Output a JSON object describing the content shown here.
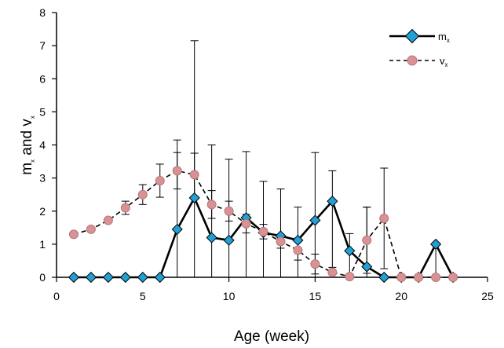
{
  "chart_data": {
    "type": "line",
    "xlabel": "Age (week)",
    "ylabel": {
      "m": "m",
      "sub1": "x",
      "and": " and v",
      "sub2": "x"
    },
    "xlim": [
      0,
      25
    ],
    "ylim": [
      0,
      8
    ],
    "xticks": [
      0,
      5,
      10,
      15,
      20,
      25
    ],
    "yticks": [
      0,
      1,
      2,
      3,
      4,
      5,
      6,
      7,
      8
    ],
    "grid": false,
    "legend_position": "top-right",
    "series": [
      {
        "name": "m",
        "name_sub": "x",
        "style": "solid",
        "marker": "diamond",
        "line_color": "#000000",
        "marker_color": "#1fa1d6",
        "x": [
          1,
          2,
          3,
          4,
          5,
          6,
          7,
          8,
          9,
          10,
          11,
          12,
          13,
          14,
          15,
          16,
          17,
          18,
          19,
          20,
          21,
          22,
          23
        ],
        "y": [
          0,
          0,
          0,
          0,
          0,
          0,
          1.45,
          2.4,
          1.2,
          1.12,
          1.8,
          1.35,
          1.25,
          1.12,
          1.72,
          2.3,
          0.8,
          0.32,
          0,
          0,
          0,
          1.0,
          0
        ],
        "err_up": [
          0,
          0,
          0,
          0,
          0,
          0,
          2.7,
          4.75,
          2.8,
          2.45,
          2.0,
          1.55,
          1.42,
          1.0,
          2.05,
          0.92,
          0.52,
          1.8,
          0,
          0,
          0,
          0,
          0
        ],
        "err_down": [
          0,
          0,
          0,
          0,
          0,
          0,
          1.45,
          2.4,
          1.2,
          1.12,
          1.8,
          1.35,
          1.25,
          1.12,
          1.72,
          2.3,
          0.8,
          0.32,
          0,
          0,
          0,
          1.0,
          0
        ]
      },
      {
        "name": "v",
        "name_sub": "x",
        "style": "dashed",
        "marker": "circle",
        "line_color": "#000000",
        "marker_color": "#d99294",
        "x": [
          1,
          2,
          3,
          4,
          5,
          6,
          7,
          8,
          9,
          10,
          11,
          12,
          13,
          14,
          15,
          16,
          17,
          18,
          19,
          20,
          21,
          22,
          23
        ],
        "y": [
          1.3,
          1.45,
          1.72,
          2.1,
          2.5,
          2.92,
          3.22,
          3.1,
          2.2,
          2.0,
          1.62,
          1.38,
          1.08,
          0.82,
          0.4,
          0.15,
          0.02,
          1.12,
          1.78,
          0,
          0,
          0,
          0
        ],
        "err_up": [
          0.05,
          0.05,
          0.06,
          0.2,
          0.3,
          0.5,
          0.55,
          0.65,
          0.42,
          0.3,
          0.28,
          0.22,
          0.2,
          0.3,
          0.3,
          0.15,
          0,
          1.0,
          1.52,
          0,
          0,
          0,
          0
        ],
        "err_down": [
          0.05,
          0.05,
          0.06,
          0.2,
          0.3,
          0.5,
          0.55,
          0.65,
          0.42,
          0.3,
          0.28,
          0.22,
          0.2,
          0.3,
          0.3,
          0.15,
          0,
          1.0,
          1.52,
          0,
          0,
          0,
          0
        ]
      }
    ]
  }
}
